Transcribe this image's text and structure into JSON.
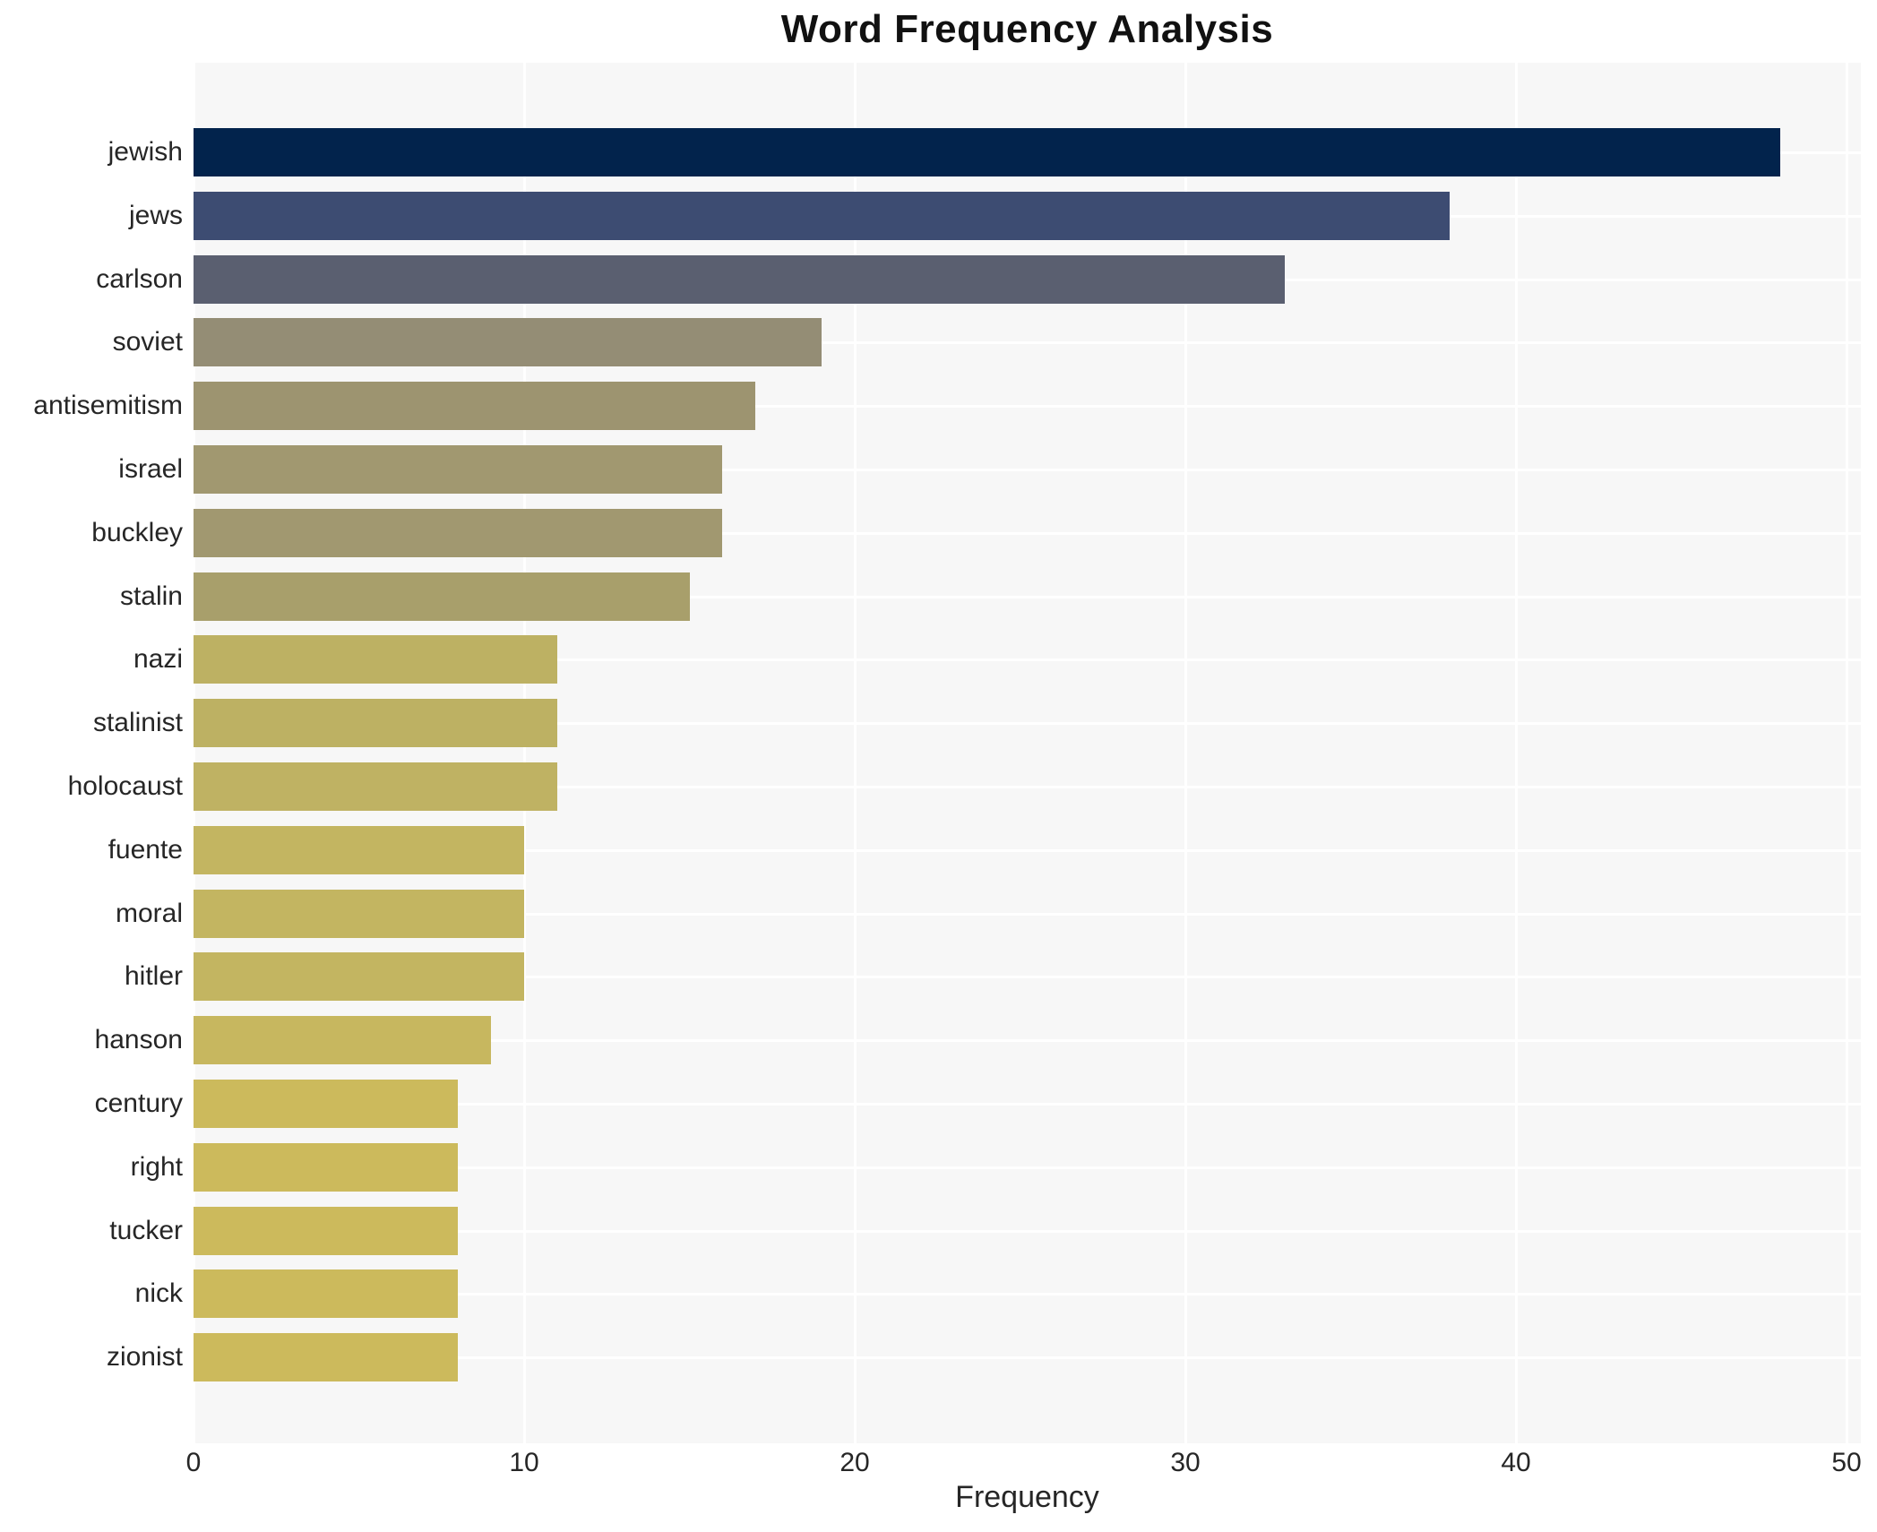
{
  "chart_data": {
    "type": "bar",
    "orientation": "horizontal",
    "title": "Word Frequency Analysis",
    "xlabel": "Frequency",
    "ylabel": "",
    "categories": [
      "jewish",
      "jews",
      "carlson",
      "soviet",
      "antisemitism",
      "israel",
      "buckley",
      "stalin",
      "nazi",
      "stalinist",
      "holocaust",
      "fuente",
      "moral",
      "hitler",
      "hanson",
      "century",
      "right",
      "tucker",
      "nick",
      "zionist"
    ],
    "values": [
      48,
      38,
      33,
      19,
      17,
      16,
      16,
      15,
      11,
      11,
      11,
      10,
      10,
      10,
      9,
      8,
      8,
      8,
      8,
      8
    ],
    "bar_colors": [
      "#02234c",
      "#3d4c72",
      "#5a5f70",
      "#948d75",
      "#9d9470",
      "#a19870",
      "#a19870",
      "#a89f6b",
      "#bdb163",
      "#bdb163",
      "#bfb263",
      "#c3b561",
      "#c3b561",
      "#c3b561",
      "#c7b75f",
      "#ccba5c",
      "#ccba5c",
      "#ccba5c",
      "#ccba5c",
      "#ccba5c"
    ],
    "xlim": [
      0,
      50
    ],
    "xticks": [
      "0",
      "10",
      "20",
      "30",
      "40",
      "50"
    ],
    "grid": "on",
    "legend": "none",
    "colors": {
      "page_background": "#ffffff",
      "plot_background": "#f7f7f7",
      "gridline": "#ffffff",
      "title_text": "#111111",
      "tick_text": "#262626"
    }
  }
}
